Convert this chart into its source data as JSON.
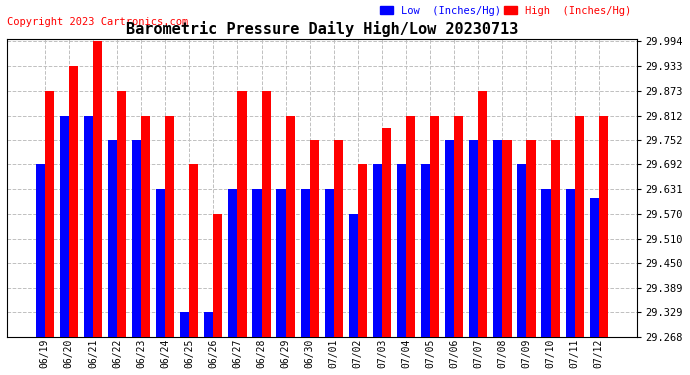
{
  "title": "Barometric Pressure Daily High/Low 20230713",
  "copyright": "Copyright 2023 Cartronics.com",
  "legend_low_label": "Low  (Inches/Hg)",
  "legend_high_label": "High  (Inches/Hg)",
  "dates": [
    "06/19",
    "06/20",
    "06/21",
    "06/22",
    "06/23",
    "06/24",
    "06/25",
    "06/26",
    "06/27",
    "06/28",
    "06/29",
    "06/30",
    "07/01",
    "07/02",
    "07/03",
    "07/04",
    "07/05",
    "07/06",
    "07/07",
    "07/08",
    "07/09",
    "07/10",
    "07/11",
    "07/12"
  ],
  "high_values": [
    29.873,
    29.933,
    29.994,
    29.873,
    29.812,
    29.812,
    29.692,
    29.57,
    29.873,
    29.873,
    29.812,
    29.752,
    29.752,
    29.692,
    29.782,
    29.812,
    29.812,
    29.812,
    29.873,
    29.752,
    29.752,
    29.752,
    29.812,
    29.812
  ],
  "low_values": [
    29.692,
    29.812,
    29.812,
    29.752,
    29.752,
    29.631,
    29.329,
    29.329,
    29.631,
    29.631,
    29.631,
    29.631,
    29.631,
    29.57,
    29.692,
    29.692,
    29.692,
    29.752,
    29.752,
    29.752,
    29.692,
    29.631,
    29.631,
    29.61
  ],
  "ymin": 29.268,
  "ymax": 29.994,
  "yticks": [
    29.994,
    29.933,
    29.873,
    29.812,
    29.752,
    29.692,
    29.631,
    29.57,
    29.51,
    29.45,
    29.389,
    29.329,
    29.268
  ],
  "high_color": "#ff0000",
  "low_color": "#0000ff",
  "background_color": "#ffffff",
  "grid_color": "#c0c0c0",
  "title_fontsize": 11,
  "copyright_fontsize": 7.5,
  "bar_width": 0.38
}
